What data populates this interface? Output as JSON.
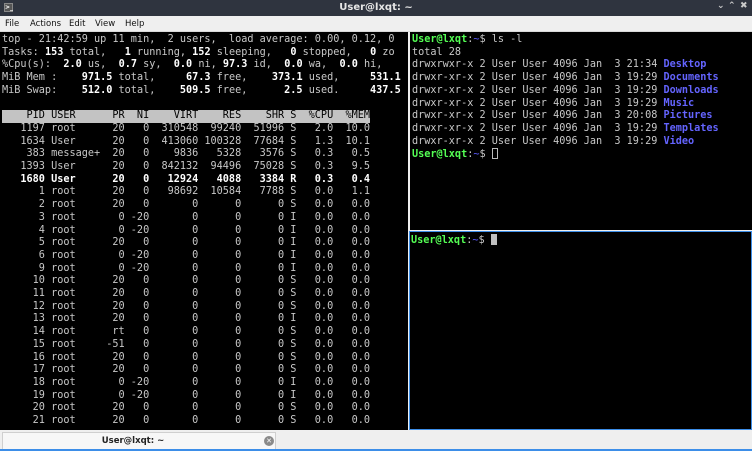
{
  "window": {
    "title": "User@lxqt: ~"
  },
  "menu": [
    "File",
    "Actions",
    "Edit",
    "View",
    "Help"
  ],
  "top": {
    "summary": [
      [
        {
          "t": "top - 21:42:59 up 11 min,  2 users,  load average: 0.00, 0.12, 0"
        }
      ],
      [
        {
          "t": "Tasks: "
        },
        {
          "t": "153",
          "b": 1
        },
        {
          "t": " total,   "
        },
        {
          "t": "1",
          "b": 1
        },
        {
          "t": " running, "
        },
        {
          "t": "152",
          "b": 1
        },
        {
          "t": " sleeping,   "
        },
        {
          "t": "0",
          "b": 1
        },
        {
          "t": " stopped,   "
        },
        {
          "t": "0",
          "b": 1
        },
        {
          "t": " zo"
        }
      ],
      [
        {
          "t": "%Cpu(s):  "
        },
        {
          "t": "2.0",
          "b": 1
        },
        {
          "t": " us,  "
        },
        {
          "t": "0.7",
          "b": 1
        },
        {
          "t": " sy,  "
        },
        {
          "t": "0.0",
          "b": 1
        },
        {
          "t": " ni, "
        },
        {
          "t": "97.3",
          "b": 1
        },
        {
          "t": " id,  "
        },
        {
          "t": "0.0",
          "b": 1
        },
        {
          "t": " wa,  "
        },
        {
          "t": "0.0",
          "b": 1
        },
        {
          "t": " hi,"
        }
      ],
      [
        {
          "t": "MiB Mem :    "
        },
        {
          "t": "971.5",
          "b": 1
        },
        {
          "t": " total,     "
        },
        {
          "t": "67.3",
          "b": 1
        },
        {
          "t": " free,    "
        },
        {
          "t": "373.1",
          "b": 1
        },
        {
          "t": " used,     "
        },
        {
          "t": "531.1",
          "b": 1
        }
      ],
      [
        {
          "t": "MiB Swap:    "
        },
        {
          "t": "512.0",
          "b": 1
        },
        {
          "t": " total,    "
        },
        {
          "t": "509.5",
          "b": 1
        },
        {
          "t": " free,      "
        },
        {
          "t": "2.5",
          "b": 1
        },
        {
          "t": " used.     "
        },
        {
          "t": "437.5",
          "b": 1
        }
      ]
    ],
    "columns": [
      "PID",
      "USER",
      "PR",
      "NI",
      "VIRT",
      "RES",
      "SHR",
      "S",
      "%CPU",
      "%MEM"
    ],
    "rows": [
      [
        "1197",
        "root",
        "20",
        "0",
        "310548",
        "99240",
        "51996",
        "S",
        "2.0",
        "10.0"
      ],
      [
        "1634",
        "User",
        "20",
        "0",
        "413060",
        "100328",
        "77684",
        "S",
        "1.3",
        "10.1"
      ],
      [
        "383",
        "message+",
        "20",
        "0",
        "9836",
        "5328",
        "3576",
        "S",
        "0.3",
        "0.5"
      ],
      [
        "1393",
        "User",
        "20",
        "0",
        "842132",
        "94496",
        "75028",
        "S",
        "0.3",
        "9.5"
      ],
      [
        "1680",
        "User",
        "20",
        "0",
        "12924",
        "4088",
        "3384",
        "R",
        "0.3",
        "0.4"
      ],
      [
        "1",
        "root",
        "20",
        "0",
        "98692",
        "10584",
        "7788",
        "S",
        "0.0",
        "1.1"
      ],
      [
        "2",
        "root",
        "20",
        "0",
        "0",
        "0",
        "0",
        "S",
        "0.0",
        "0.0"
      ],
      [
        "3",
        "root",
        "0",
        "-20",
        "0",
        "0",
        "0",
        "I",
        "0.0",
        "0.0"
      ],
      [
        "4",
        "root",
        "0",
        "-20",
        "0",
        "0",
        "0",
        "I",
        "0.0",
        "0.0"
      ],
      [
        "5",
        "root",
        "20",
        "0",
        "0",
        "0",
        "0",
        "I",
        "0.0",
        "0.0"
      ],
      [
        "6",
        "root",
        "0",
        "-20",
        "0",
        "0",
        "0",
        "I",
        "0.0",
        "0.0"
      ],
      [
        "9",
        "root",
        "0",
        "-20",
        "0",
        "0",
        "0",
        "I",
        "0.0",
        "0.0"
      ],
      [
        "10",
        "root",
        "20",
        "0",
        "0",
        "0",
        "0",
        "S",
        "0.0",
        "0.0"
      ],
      [
        "11",
        "root",
        "20",
        "0",
        "0",
        "0",
        "0",
        "S",
        "0.0",
        "0.0"
      ],
      [
        "12",
        "root",
        "20",
        "0",
        "0",
        "0",
        "0",
        "S",
        "0.0",
        "0.0"
      ],
      [
        "13",
        "root",
        "20",
        "0",
        "0",
        "0",
        "0",
        "I",
        "0.0",
        "0.0"
      ],
      [
        "14",
        "root",
        "rt",
        "0",
        "0",
        "0",
        "0",
        "S",
        "0.0",
        "0.0"
      ],
      [
        "15",
        "root",
        "-51",
        "0",
        "0",
        "0",
        "0",
        "S",
        "0.0",
        "0.0"
      ],
      [
        "16",
        "root",
        "20",
        "0",
        "0",
        "0",
        "0",
        "S",
        "0.0",
        "0.0"
      ],
      [
        "17",
        "root",
        "20",
        "0",
        "0",
        "0",
        "0",
        "S",
        "0.0",
        "0.0"
      ],
      [
        "18",
        "root",
        "0",
        "-20",
        "0",
        "0",
        "0",
        "I",
        "0.0",
        "0.0"
      ],
      [
        "19",
        "root",
        "0",
        "-20",
        "0",
        "0",
        "0",
        "I",
        "0.0",
        "0.0"
      ],
      [
        "20",
        "root",
        "20",
        "0",
        "0",
        "0",
        "0",
        "S",
        "0.0",
        "0.0"
      ],
      [
        "21",
        "root",
        "20",
        "0",
        "0",
        "0",
        "0",
        "S",
        "0.0",
        "0.0"
      ]
    ],
    "highlighted_pid": "1680"
  },
  "shell": {
    "prompt_user": "User@lxqt",
    "prompt_sep": ":",
    "prompt_dir": "~",
    "prompt_sym": "$ ",
    "command": "ls -l",
    "total": "total 28",
    "entries": [
      {
        "perm": "drwxrwxr-x 2 User User 4096 Jan  3 21:34 ",
        "name": "Desktop"
      },
      {
        "perm": "drwxr-xr-x 2 User User 4096 Jan  3 19:29 ",
        "name": "Documents"
      },
      {
        "perm": "drwxr-xr-x 2 User User 4096 Jan  3 19:29 ",
        "name": "Downloads"
      },
      {
        "perm": "drwxr-xr-x 2 User User 4096 Jan  3 19:29 ",
        "name": "Music"
      },
      {
        "perm": "drwxr-xr-x 2 User User 4096 Jan  3 20:08 ",
        "name": "Pictures"
      },
      {
        "perm": "drwxr-xr-x 2 User User 4096 Jan  3 19:29 ",
        "name": "Templates"
      },
      {
        "perm": "drwxr-xr-x 2 User User 4096 Jan  3 19:29 ",
        "name": "Video"
      }
    ]
  },
  "tabs": [
    {
      "label": "User@lxqt: ~"
    }
  ],
  "colors": {
    "prompt_user": "#54ff54",
    "prompt_dir": "#5b5bff",
    "dir": "#6464ff",
    "focus_border": "#3d8ee8"
  }
}
